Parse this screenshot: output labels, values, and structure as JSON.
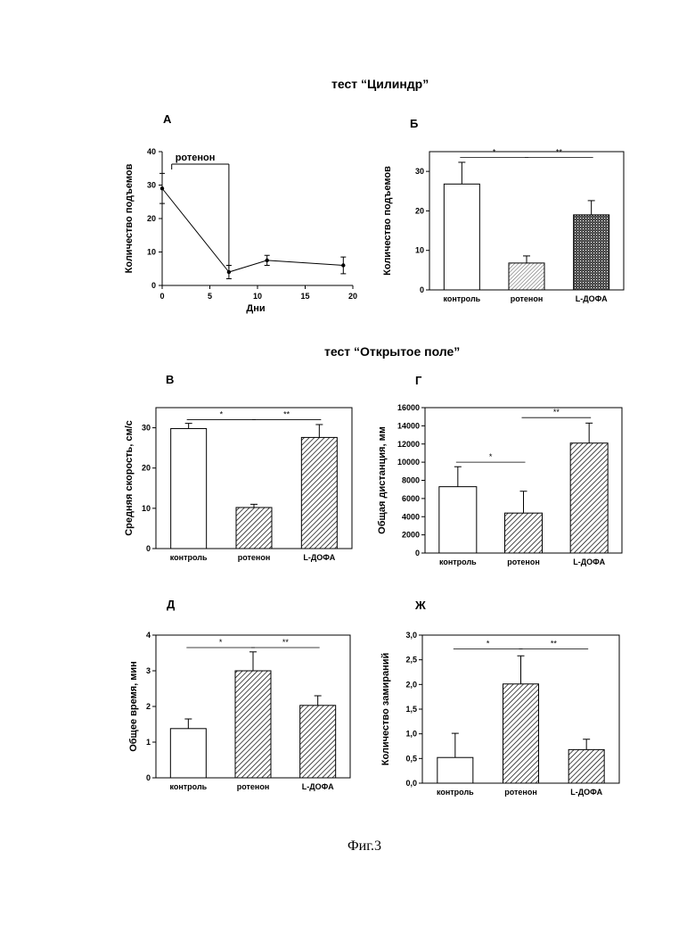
{
  "titles": {
    "cylinder": "тест “Цилиндр”",
    "open_field": "тест “Открытое поле”",
    "figure": "Фиг.3"
  },
  "colors": {
    "axis": "#000000",
    "hatch": "#000000",
    "bar_open": "#ffffff"
  },
  "chart_data": [
    {
      "id": "A",
      "type": "line",
      "panel_label": "А",
      "x": [
        0,
        7,
        11,
        19
      ],
      "y": [
        29,
        4,
        7.5,
        6
      ],
      "err": [
        4.5,
        2,
        1.5,
        2.5
      ],
      "xlim": [
        0,
        20
      ],
      "ylim": [
        0,
        40
      ],
      "xticks": [
        0,
        5,
        10,
        15,
        20
      ],
      "yticks": [
        0,
        10,
        20,
        30,
        40
      ],
      "xlabel": "Дни",
      "ylabel": "Количество подъемов",
      "annotation": {
        "text": "ротенон",
        "x_start": 1,
        "x_end": 7
      }
    },
    {
      "id": "B",
      "type": "bar",
      "panel_label": "Б",
      "categories": [
        "контроль",
        "ротенон",
        "L-ДОФА"
      ],
      "values": [
        26.8,
        6.8,
        19
      ],
      "err": [
        5.5,
        1.8,
        3.6
      ],
      "fills": [
        "open",
        "hatch-light",
        "hatch-dense"
      ],
      "ylim": [
        0,
        35
      ],
      "yticks": [
        0,
        10,
        20,
        30
      ],
      "ytick_labels": [
        "0",
        "10",
        "20",
        "30"
      ],
      "ylabel": "Количество подъемов",
      "significance": [
        {
          "from": 0,
          "to": 1,
          "label": "*",
          "y": 33.5
        },
        {
          "from": 1,
          "to": 2,
          "label": "**",
          "y": 33.5
        }
      ]
    },
    {
      "id": "C",
      "type": "bar",
      "panel_label": "В",
      "categories": [
        "контроль",
        "ротенон",
        "L-ДОФА"
      ],
      "values": [
        29.8,
        10.2,
        27.6
      ],
      "err": [
        1.3,
        0.8,
        3.2
      ],
      "fills": [
        "open",
        "hatch",
        "hatch"
      ],
      "ylim": [
        0,
        35
      ],
      "yticks": [
        0,
        10,
        20,
        30
      ],
      "ytick_labels": [
        "0",
        "10",
        "20",
        "30"
      ],
      "ylabel": "Средняя скорость, см/с",
      "significance": [
        {
          "from": 0,
          "to": 1,
          "label": "*",
          "y": 32
        },
        {
          "from": 1,
          "to": 2,
          "label": "**",
          "y": 32
        }
      ]
    },
    {
      "id": "D",
      "type": "bar",
      "panel_label": "Г",
      "categories": [
        "контроль",
        "ротенон",
        "L-ДОФА"
      ],
      "values": [
        7300,
        4400,
        12100
      ],
      "err": [
        2200,
        2400,
        2200
      ],
      "fills": [
        "open",
        "hatch",
        "hatch"
      ],
      "ylim": [
        0,
        16000
      ],
      "yticks": [
        0,
        2000,
        4000,
        6000,
        8000,
        10000,
        12000,
        14000,
        16000
      ],
      "ytick_labels": [
        "0",
        "2000",
        "4000",
        "6000",
        "8000",
        "10000",
        "12000",
        "14000",
        "16000"
      ],
      "ylabel": "Общая дистанция, мм",
      "significance": [
        {
          "from": 0,
          "to": 1,
          "label": "*",
          "y": 10000
        },
        {
          "from": 1,
          "to": 2,
          "label": "**",
          "y": 14900
        }
      ]
    },
    {
      "id": "E",
      "type": "bar",
      "panel_label": "Д",
      "categories": [
        "контроль",
        "ротенон",
        "L-ДОФА"
      ],
      "values": [
        1.38,
        3.0,
        2.03
      ],
      "err": [
        0.27,
        0.53,
        0.27
      ],
      "fills": [
        "open",
        "hatch",
        "hatch"
      ],
      "ylim": [
        0,
        4
      ],
      "yticks": [
        0,
        1,
        2,
        3,
        4
      ],
      "ytick_labels": [
        "0",
        "1",
        "2",
        "3",
        "4"
      ],
      "ylabel": "Общее время, мин",
      "significance": [
        {
          "from": 0,
          "to": 1,
          "label": "*",
          "y": 3.65
        },
        {
          "from": 1,
          "to": 2,
          "label": "**",
          "y": 3.65
        }
      ]
    },
    {
      "id": "F",
      "type": "bar",
      "panel_label": "Ж",
      "categories": [
        "контроль",
        "ротенон",
        "L-ДОФА"
      ],
      "values": [
        0.52,
        2.01,
        0.68
      ],
      "err": [
        0.49,
        0.57,
        0.21
      ],
      "fills": [
        "open",
        "hatch",
        "hatch"
      ],
      "ylim": [
        0,
        3.0
      ],
      "yticks": [
        0,
        0.5,
        1.0,
        1.5,
        2.0,
        2.5,
        3.0
      ],
      "ytick_labels": [
        "0,0",
        "0,5",
        "1,0",
        "1,5",
        "2,0",
        "2,5",
        "3,0"
      ],
      "ylabel": "Количество замираний",
      "significance": [
        {
          "from": 0,
          "to": 1,
          "label": "*",
          "y": 2.72
        },
        {
          "from": 1,
          "to": 2,
          "label": "**",
          "y": 2.72
        }
      ]
    }
  ]
}
